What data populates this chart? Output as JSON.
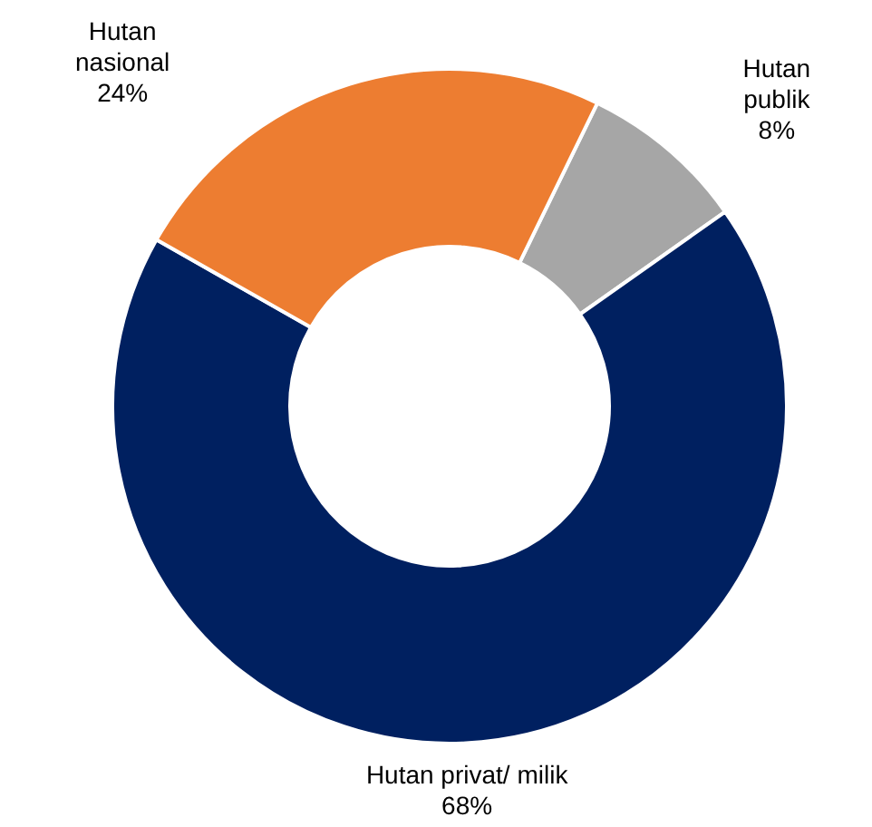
{
  "chart_data": {
    "type": "donut",
    "categories": [
      "Hutan publik",
      "Hutan privat/ milik",
      "Hutan nasional"
    ],
    "values": [
      8,
      68,
      24
    ],
    "colors": [
      "#a6a6a6",
      "#002060",
      "#ed7d31"
    ],
    "value_labels": [
      "8%",
      "68%",
      "24%"
    ]
  }
}
